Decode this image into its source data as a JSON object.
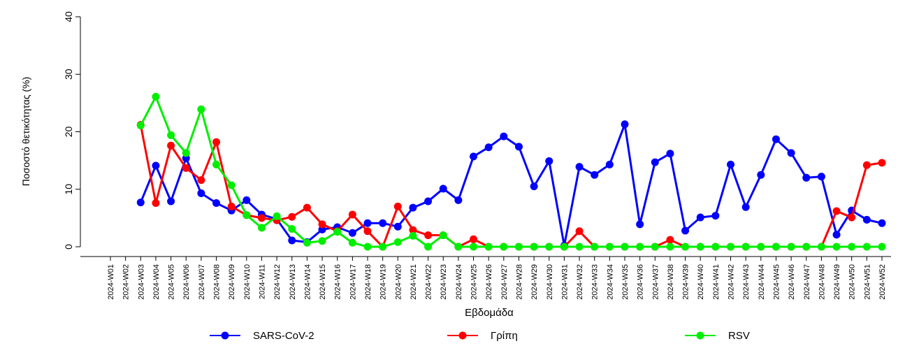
{
  "chart_data": {
    "type": "line",
    "x_label": "Εβδομάδα",
    "y_label": "Ποσοστό θετικότητας (%)",
    "categories": [
      "2024-W01",
      "2024-W02",
      "2024-W03",
      "2024-W04",
      "2024-W05",
      "2024-W06",
      "2024-W07",
      "2024-W08",
      "2024-W09",
      "2024-W10",
      "2024-W11",
      "2024-W12",
      "2024-W13",
      "2024-W14",
      "2024-W15",
      "2024-W16",
      "2024-W17",
      "2024-W18",
      "2024-W19",
      "2024-W20",
      "2024-W21",
      "2024-W22",
      "2024-W23",
      "2024-W24",
      "2024-W25",
      "2024-W26",
      "2024-W27",
      "2024-W28",
      "2024-W29",
      "2024-W30",
      "2024-W31",
      "2024-W32",
      "2024-W33",
      "2024-W34",
      "2024-W35",
      "2024-W36",
      "2024-W37",
      "2024-W38",
      "2024-W39",
      "2024-W40",
      "2024-W41",
      "2024-W42",
      "2024-W43",
      "2024-W44",
      "2024-W45",
      "2024-W46",
      "2024-W47",
      "2024-W48",
      "2024-W49",
      "2024-W50",
      "2024-W51",
      "2024-W52"
    ],
    "series": [
      {
        "name": "SARS-CoV-2",
        "color": "#0000ff",
        "values": [
          null,
          null,
          7.7,
          14.1,
          7.9,
          15.4,
          9.3,
          7.6,
          6.3,
          8.1,
          5.6,
          4.8,
          1.1,
          0.8,
          3.0,
          3.4,
          2.4,
          4.1,
          4.1,
          3.5,
          6.8,
          7.9,
          10.1,
          8.1,
          15.7,
          17.3,
          19.2,
          17.4,
          10.5,
          14.9,
          0.2,
          13.9,
          12.5,
          14.3,
          21.3,
          3.9,
          14.7,
          16.2,
          2.8,
          5.1,
          5.4,
          14.3,
          6.9,
          12.5,
          18.7,
          16.3,
          12.0,
          12.2,
          2.1,
          6.3,
          4.7,
          4.1
        ]
      },
      {
        "name": "Γρίπη",
        "color": "#ff0000",
        "values": [
          null,
          null,
          21.2,
          7.6,
          17.6,
          13.7,
          11.6,
          18.2,
          7.0,
          5.5,
          5.0,
          4.6,
          5.2,
          6.8,
          3.9,
          2.7,
          5.6,
          2.7,
          0,
          7.0,
          2.9,
          2.0,
          2.0,
          0,
          1.3,
          0,
          0,
          0,
          0,
          0,
          0,
          2.7,
          0,
          0,
          0,
          0,
          0,
          1.2,
          0,
          0,
          0,
          0,
          0,
          0,
          0,
          0,
          0,
          0,
          6.2,
          5.1,
          14.2,
          14.6
        ]
      },
      {
        "name": "RSV",
        "color": "#00ee00",
        "values": [
          null,
          null,
          21.1,
          26.1,
          19.4,
          16.3,
          23.9,
          14.3,
          10.7,
          5.5,
          3.3,
          5.3,
          3.1,
          0.7,
          1.0,
          2.6,
          0.7,
          0,
          0,
          0.8,
          1.9,
          0,
          2.0,
          0,
          0,
          0,
          0,
          0,
          0,
          0,
          0,
          0,
          0,
          0,
          0,
          0,
          0,
          0,
          0,
          0,
          0,
          0,
          0,
          0,
          0,
          0,
          0,
          0,
          0,
          0,
          0,
          0
        ]
      }
    ],
    "ylim": [
      0,
      40
    ],
    "yticks": [
      0,
      10,
      20,
      30,
      40
    ]
  }
}
